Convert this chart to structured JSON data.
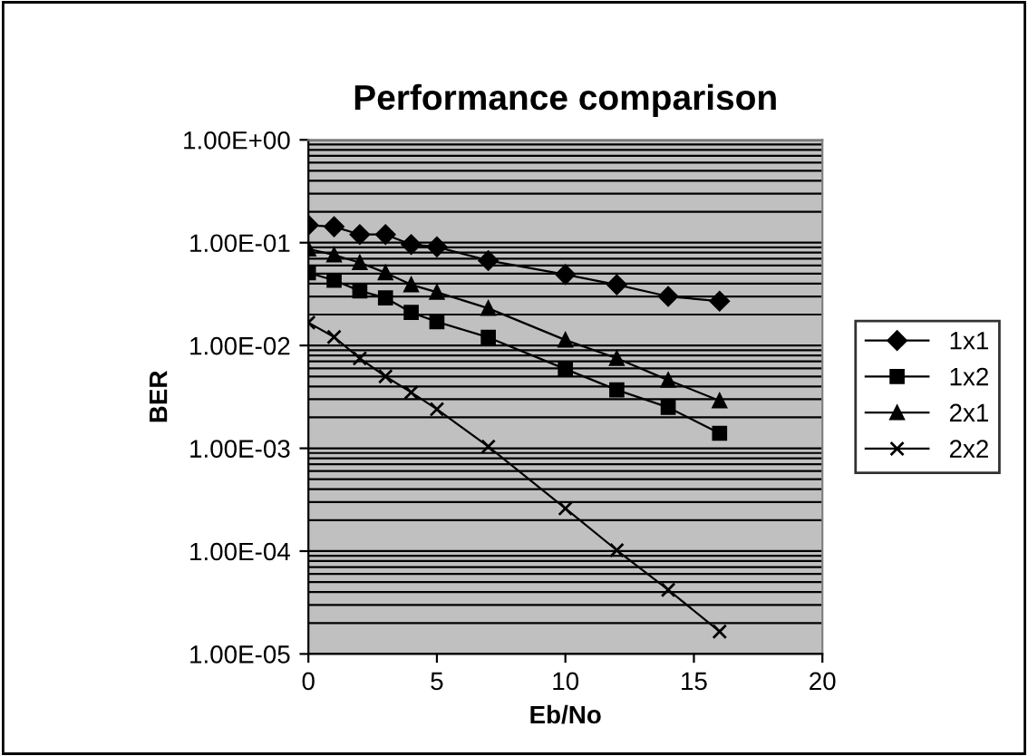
{
  "chart_data": {
    "type": "line",
    "title": "Performance comparison",
    "xlabel": "Eb/No",
    "ylabel": "BER",
    "x": [
      0,
      1,
      2,
      3,
      4,
      5,
      7,
      10,
      12,
      14,
      16
    ],
    "series": [
      {
        "name": "1x1",
        "color": "#000000",
        "marker": "diamond",
        "values": [
          0.148,
          0.143,
          0.12,
          0.12,
          0.096,
          0.091,
          0.067,
          0.049,
          0.039,
          0.03,
          0.027
        ]
      },
      {
        "name": "1x2",
        "color": "#000000",
        "marker": "square",
        "values": [
          0.051,
          0.043,
          0.034,
          0.029,
          0.021,
          0.017,
          0.012,
          0.0059,
          0.0037,
          0.0025,
          0.0014
        ]
      },
      {
        "name": "2x1",
        "color": "#000000",
        "marker": "triangle",
        "values": [
          0.087,
          0.076,
          0.064,
          0.051,
          0.039,
          0.033,
          0.023,
          0.0113,
          0.0075,
          0.0046,
          0.0029
        ]
      },
      {
        "name": "2x2",
        "color": "#000000",
        "marker": "cross",
        "values": [
          0.0167,
          0.0121,
          0.0075,
          0.005,
          0.0035,
          0.0024,
          0.00104,
          0.00026,
          0.000102,
          4.2e-05,
          1.65e-05
        ]
      }
    ],
    "log": "y",
    "xlim": [
      0,
      20
    ],
    "xticks": [
      0,
      5,
      10,
      15,
      20
    ],
    "ylim": [
      1e-05,
      1
    ],
    "yticks": [
      {
        "value": 1,
        "label": "1.00E+00"
      },
      {
        "value": 0.1,
        "label": "1.00E-01"
      },
      {
        "value": 0.01,
        "label": "1.00E-02"
      },
      {
        "value": 0.001,
        "label": "1.00E-03"
      },
      {
        "value": 0.0001,
        "label": "1.00E-04"
      },
      {
        "value": 1e-05,
        "label": "1.00E-05"
      }
    ],
    "grid": "y",
    "legend": "right",
    "line_style": "solid"
  }
}
